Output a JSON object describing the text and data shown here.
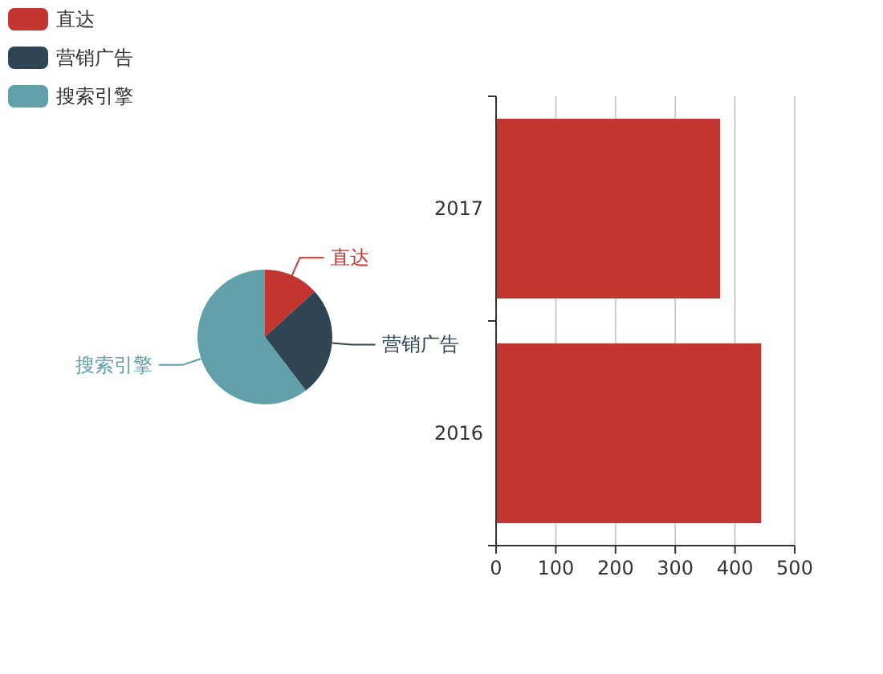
{
  "chart_data": [
    {
      "type": "pie",
      "categories": [
        "直达",
        "营销广告",
        "搜索引擎"
      ],
      "values": [
        13.2,
        26.4,
        60.4
      ],
      "colors": [
        "#c23531",
        "#2f4554",
        "#61a0a8"
      ],
      "legend": "top left"
    },
    {
      "type": "bar",
      "orientation": "horizontal",
      "categories": [
        "2017",
        "2016"
      ],
      "values": [
        375,
        444
      ],
      "color": "#c23531",
      "xlim": [
        0,
        500
      ],
      "xticks": [
        0,
        100,
        200,
        300,
        400,
        500
      ],
      "grid": "x"
    }
  ]
}
